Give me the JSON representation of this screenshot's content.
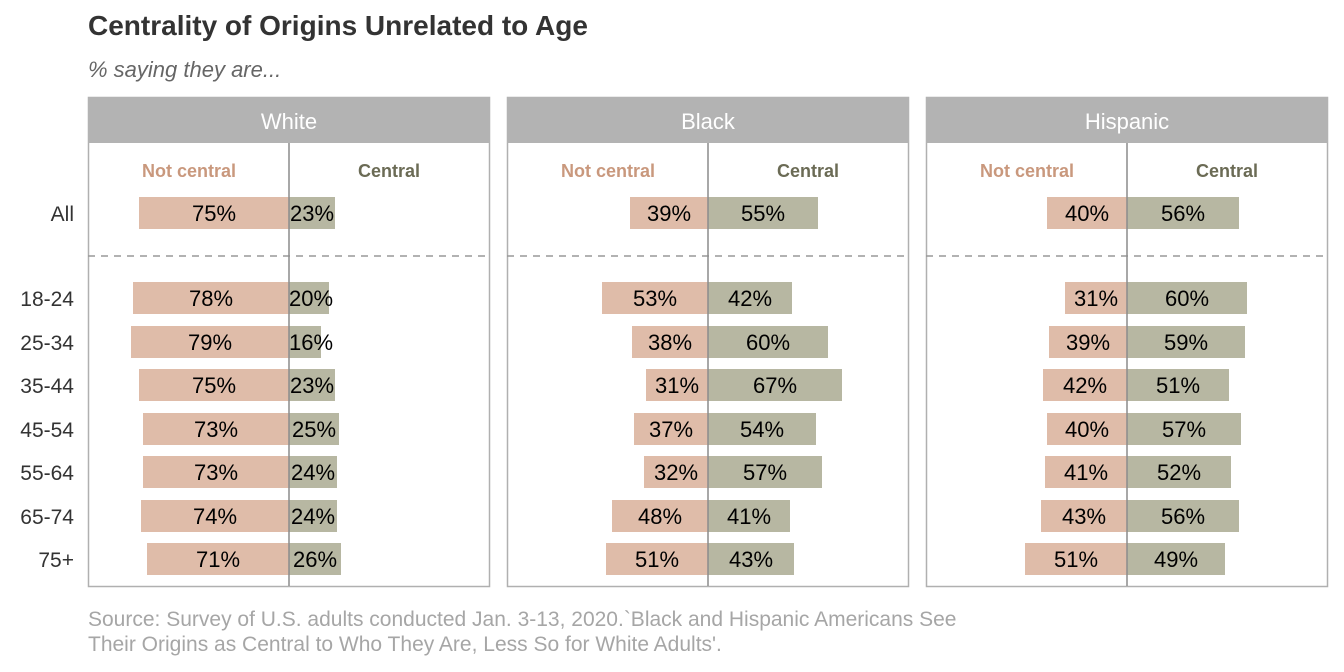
{
  "title": "Centrality of Origins Unrelated to Age",
  "subtitle": "% saying they are...",
  "source": {
    "line1": "Source: Survey of U.S. adults conducted Jan. 3-13, 2020.`Black and Hispanic Americans See",
    "line2": "Their Origins as Central to Who They Are, Less So for White Adults'."
  },
  "colors": {
    "not_central": "#dfbca9",
    "central": "#b7b7a2",
    "not_central_label": "#c9987d",
    "central_label": "#6b6b55",
    "panel_header": "#b3b3b3",
    "border": "#b0b0b0"
  },
  "chart_data": {
    "type": "bar",
    "orientation": "horizontal-diverging",
    "series_labels": {
      "not_central": "Not central",
      "central": "Central"
    },
    "categories": [
      "All",
      "18-24",
      "25-34",
      "35-44",
      "45-54",
      "55-64",
      "65-74",
      "75+"
    ],
    "panels": [
      {
        "name": "White",
        "not_central": [
          75,
          78,
          79,
          75,
          73,
          73,
          74,
          71
        ],
        "central": [
          23,
          20,
          16,
          23,
          25,
          24,
          24,
          26
        ]
      },
      {
        "name": "Black",
        "not_central": [
          39,
          53,
          38,
          31,
          37,
          32,
          48,
          51
        ],
        "central": [
          55,
          42,
          60,
          67,
          54,
          57,
          41,
          43
        ]
      },
      {
        "name": "Hispanic",
        "not_central": [
          40,
          31,
          39,
          42,
          40,
          41,
          43,
          51
        ],
        "central": [
          56,
          60,
          59,
          51,
          57,
          52,
          56,
          49
        ]
      }
    ]
  }
}
